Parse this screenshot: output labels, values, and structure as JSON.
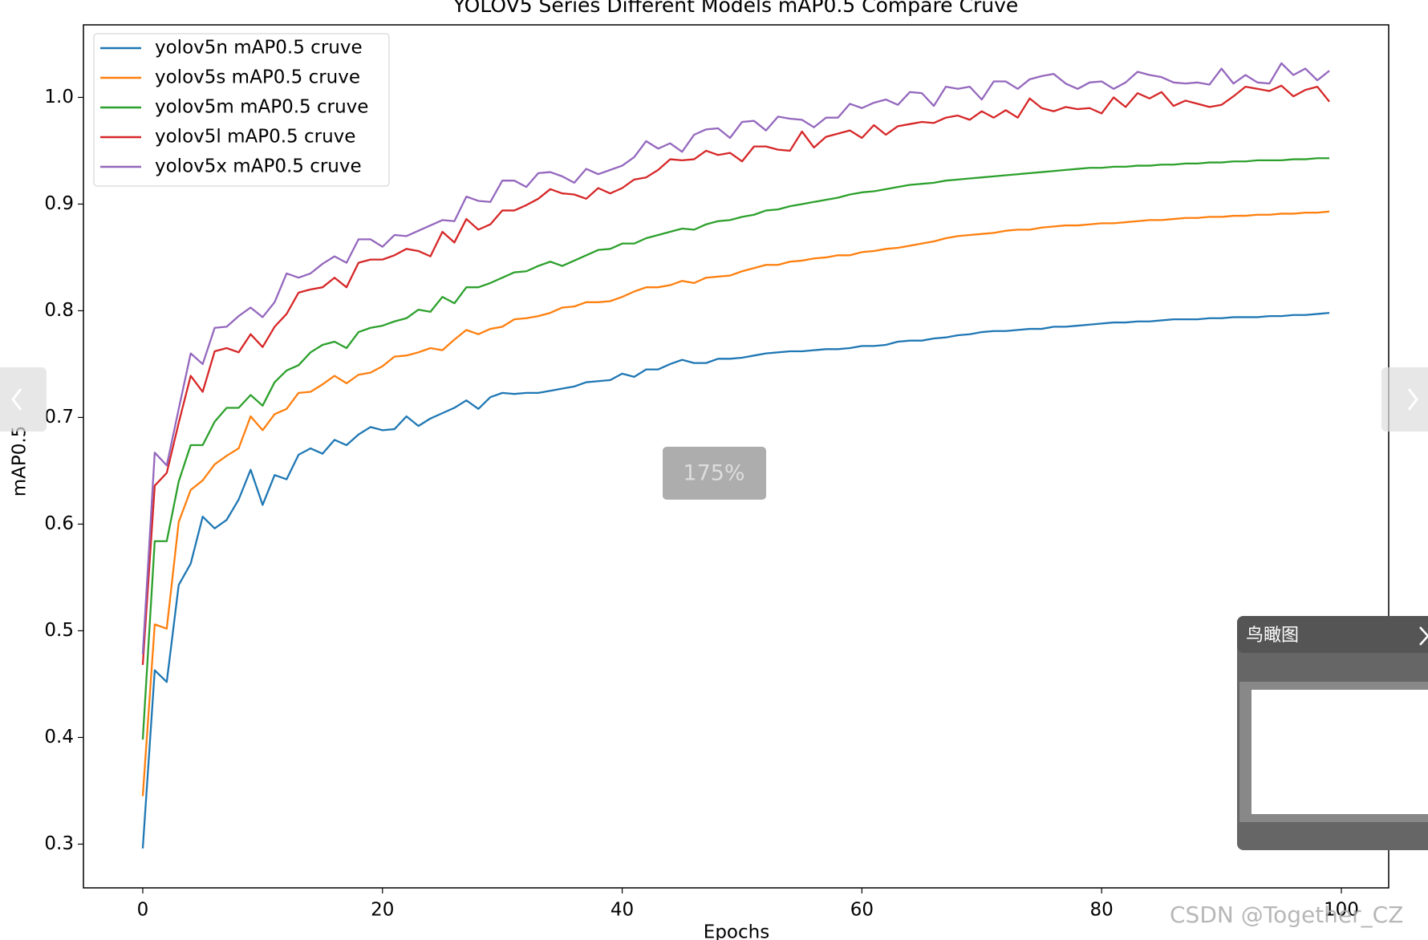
{
  "chart_data": {
    "type": "line",
    "title": "YOLOV5 Series Different Models mAP0.5 Compare Cruve",
    "xlabel": "Epochs",
    "ylabel": "mAP0.5",
    "x": [
      0,
      1,
      2,
      3,
      4,
      5,
      6,
      7,
      8,
      9,
      10,
      11,
      12,
      13,
      14,
      15,
      16,
      17,
      18,
      19,
      20,
      21,
      22,
      23,
      24,
      25,
      26,
      27,
      28,
      29,
      30,
      31,
      32,
      33,
      34,
      35,
      36,
      37,
      38,
      39,
      40,
      41,
      42,
      43,
      44,
      45,
      46,
      47,
      48,
      49,
      50,
      51,
      52,
      53,
      54,
      55,
      56,
      57,
      58,
      59,
      60,
      61,
      62,
      63,
      64,
      65,
      66,
      67,
      68,
      69,
      70,
      71,
      72,
      73,
      74,
      75,
      76,
      77,
      78,
      79,
      80,
      81,
      82,
      83,
      84,
      85,
      86,
      87,
      88,
      89,
      90,
      91,
      92,
      93,
      94,
      95,
      96,
      97,
      98,
      99
    ],
    "series": [
      {
        "name": "yolov5n mAP0.5 cruve",
        "color": "#1f77b4",
        "values": [
          0.296,
          0.463,
          0.452,
          0.543,
          0.563,
          0.607,
          0.596,
          0.604,
          0.623,
          0.651,
          0.618,
          0.646,
          0.642,
          0.665,
          0.671,
          0.666,
          0.679,
          0.674,
          0.684,
          0.691,
          0.688,
          0.689,
          0.701,
          0.692,
          0.699,
          0.704,
          0.709,
          0.716,
          0.708,
          0.719,
          0.723,
          0.722,
          0.723,
          0.723,
          0.725,
          0.727,
          0.729,
          0.733,
          0.734,
          0.735,
          0.741,
          0.738,
          0.745,
          0.745,
          0.75,
          0.754,
          0.751,
          0.751,
          0.755,
          0.755,
          0.756,
          0.758,
          0.76,
          0.761,
          0.762,
          0.762,
          0.763,
          0.764,
          0.764,
          0.765,
          0.767,
          0.767,
          0.768,
          0.771,
          0.772,
          0.772,
          0.774,
          0.775,
          0.777,
          0.778,
          0.78,
          0.781,
          0.781,
          0.782,
          0.783,
          0.783,
          0.785,
          0.785,
          0.786,
          0.787,
          0.788,
          0.789,
          0.789,
          0.79,
          0.79,
          0.791,
          0.792,
          0.792,
          0.792,
          0.793,
          0.793,
          0.794,
          0.794,
          0.794,
          0.795,
          0.795,
          0.796,
          0.796,
          0.797,
          0.798
        ]
      },
      {
        "name": "yolov5s mAP0.5 cruve",
        "color": "#ff7f0e",
        "values": [
          0.345,
          0.506,
          0.502,
          0.602,
          0.632,
          0.641,
          0.656,
          0.664,
          0.671,
          0.701,
          0.688,
          0.703,
          0.708,
          0.723,
          0.724,
          0.731,
          0.739,
          0.732,
          0.74,
          0.742,
          0.748,
          0.757,
          0.758,
          0.761,
          0.765,
          0.763,
          0.773,
          0.782,
          0.778,
          0.783,
          0.785,
          0.792,
          0.793,
          0.795,
          0.798,
          0.803,
          0.804,
          0.808,
          0.808,
          0.809,
          0.813,
          0.818,
          0.822,
          0.822,
          0.824,
          0.828,
          0.826,
          0.831,
          0.832,
          0.833,
          0.837,
          0.84,
          0.843,
          0.843,
          0.846,
          0.847,
          0.849,
          0.85,
          0.852,
          0.852,
          0.855,
          0.856,
          0.858,
          0.859,
          0.861,
          0.863,
          0.865,
          0.868,
          0.87,
          0.871,
          0.872,
          0.873,
          0.875,
          0.876,
          0.876,
          0.878,
          0.879,
          0.88,
          0.88,
          0.881,
          0.882,
          0.882,
          0.883,
          0.884,
          0.885,
          0.885,
          0.886,
          0.887,
          0.887,
          0.888,
          0.888,
          0.889,
          0.889,
          0.89,
          0.89,
          0.891,
          0.891,
          0.892,
          0.892,
          0.893
        ]
      },
      {
        "name": "yolov5m mAP0.5 cruve",
        "color": "#2ca02c",
        "values": [
          0.398,
          0.584,
          0.584,
          0.64,
          0.674,
          0.674,
          0.696,
          0.709,
          0.709,
          0.721,
          0.711,
          0.733,
          0.744,
          0.749,
          0.761,
          0.768,
          0.771,
          0.765,
          0.78,
          0.784,
          0.786,
          0.79,
          0.793,
          0.801,
          0.799,
          0.813,
          0.807,
          0.822,
          0.822,
          0.826,
          0.831,
          0.836,
          0.837,
          0.842,
          0.846,
          0.842,
          0.847,
          0.852,
          0.857,
          0.858,
          0.863,
          0.863,
          0.868,
          0.871,
          0.874,
          0.877,
          0.876,
          0.881,
          0.884,
          0.885,
          0.888,
          0.89,
          0.894,
          0.895,
          0.898,
          0.9,
          0.902,
          0.904,
          0.906,
          0.909,
          0.911,
          0.912,
          0.914,
          0.916,
          0.918,
          0.919,
          0.92,
          0.922,
          0.923,
          0.924,
          0.925,
          0.926,
          0.927,
          0.928,
          0.929,
          0.93,
          0.931,
          0.932,
          0.933,
          0.934,
          0.934,
          0.935,
          0.935,
          0.936,
          0.936,
          0.937,
          0.937,
          0.938,
          0.938,
          0.939,
          0.939,
          0.94,
          0.94,
          0.941,
          0.941,
          0.941,
          0.942,
          0.942,
          0.943,
          0.943
        ]
      },
      {
        "name": "yolov5l mAP0.5 cruve",
        "color": "#d62728",
        "values": [
          0.468,
          0.636,
          0.648,
          0.695,
          0.739,
          0.724,
          0.762,
          0.765,
          0.761,
          0.778,
          0.766,
          0.785,
          0.797,
          0.817,
          0.82,
          0.822,
          0.831,
          0.822,
          0.845,
          0.848,
          0.848,
          0.852,
          0.858,
          0.856,
          0.851,
          0.874,
          0.864,
          0.886,
          0.876,
          0.881,
          0.894,
          0.894,
          0.899,
          0.905,
          0.914,
          0.91,
          0.909,
          0.905,
          0.915,
          0.91,
          0.915,
          0.923,
          0.925,
          0.932,
          0.942,
          0.941,
          0.942,
          0.95,
          0.946,
          0.948,
          0.94,
          0.954,
          0.954,
          0.951,
          0.95,
          0.968,
          0.953,
          0.963,
          0.966,
          0.969,
          0.962,
          0.974,
          0.965,
          0.973,
          0.975,
          0.977,
          0.976,
          0.981,
          0.983,
          0.979,
          0.987,
          0.981,
          0.988,
          0.981,
          0.999,
          0.99,
          0.987,
          0.991,
          0.989,
          0.99,
          0.985,
          1.0,
          0.991,
          1.004,
          0.999,
          1.005,
          0.992,
          0.997,
          0.994,
          0.991,
          0.993,
          1.001,
          1.01,
          1.008,
          1.006,
          1.011,
          1.001,
          1.007,
          1.01,
          0.996
        ]
      },
      {
        "name": "yolov5x mAP0.5 cruve",
        "color": "#9467bd",
        "values": [
          0.478,
          0.667,
          0.655,
          0.708,
          0.76,
          0.75,
          0.784,
          0.785,
          0.795,
          0.803,
          0.794,
          0.808,
          0.835,
          0.831,
          0.835,
          0.844,
          0.851,
          0.845,
          0.867,
          0.867,
          0.86,
          0.871,
          0.87,
          0.875,
          0.88,
          0.885,
          0.884,
          0.907,
          0.903,
          0.902,
          0.922,
          0.922,
          0.916,
          0.929,
          0.93,
          0.926,
          0.92,
          0.933,
          0.928,
          0.932,
          0.936,
          0.944,
          0.959,
          0.952,
          0.957,
          0.949,
          0.965,
          0.97,
          0.971,
          0.962,
          0.977,
          0.978,
          0.969,
          0.982,
          0.98,
          0.979,
          0.972,
          0.981,
          0.981,
          0.994,
          0.99,
          0.995,
          0.998,
          0.993,
          1.005,
          1.004,
          0.992,
          1.01,
          1.008,
          1.01,
          0.998,
          1.015,
          1.015,
          1.008,
          1.017,
          1.02,
          1.022,
          1.013,
          1.008,
          1.014,
          1.015,
          1.008,
          1.014,
          1.024,
          1.021,
          1.019,
          1.014,
          1.013,
          1.014,
          1.012,
          1.027,
          1.013,
          1.021,
          1.014,
          1.013,
          1.032,
          1.021,
          1.027,
          1.016,
          1.025
        ]
      }
    ],
    "xlim": [
      -4.95,
      103.95
    ],
    "ylim": [
      0.259,
      1.068
    ],
    "xticks": [
      0,
      20,
      40,
      60,
      80,
      100
    ],
    "yticks": [
      0.3,
      0.4,
      0.5,
      0.6,
      0.7,
      0.8,
      0.9,
      {
        "value": 1,
        "label": "1.0"
      }
    ],
    "grid": false,
    "legend": "upper-left"
  },
  "viewer": {
    "zoom_label": "175%",
    "minimap_title": "鸟瞰图",
    "watermark": "CSDN @Together_CZ"
  }
}
